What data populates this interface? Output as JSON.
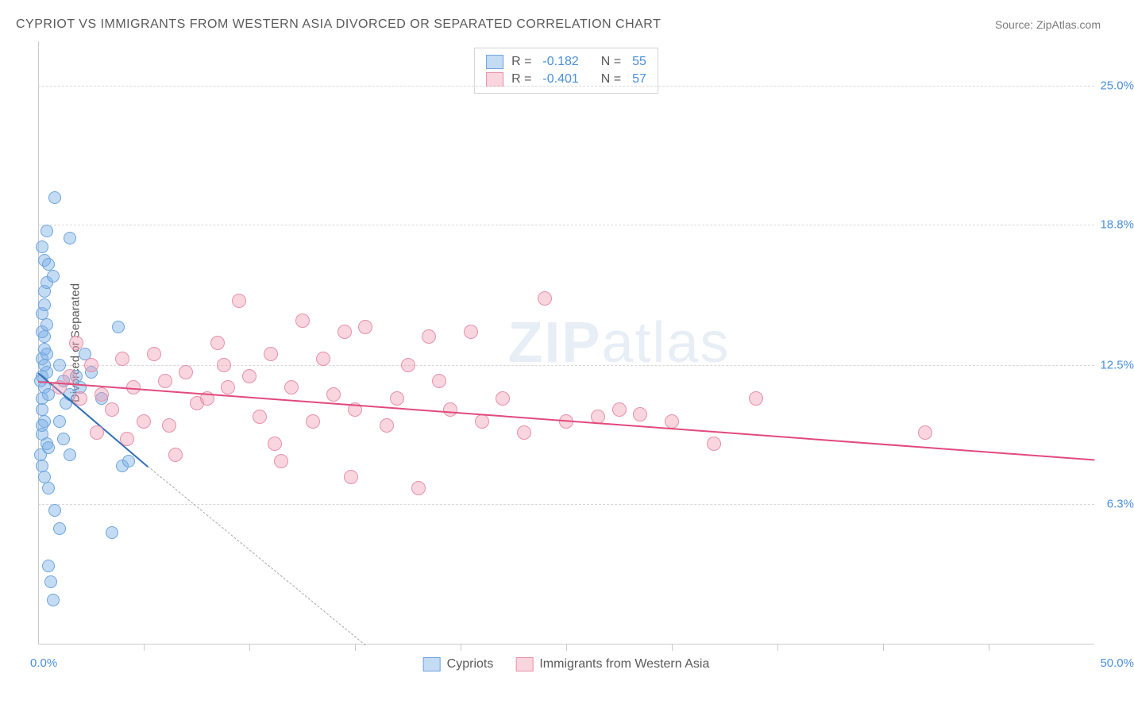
{
  "header": {
    "title": "CYPRIOT VS IMMIGRANTS FROM WESTERN ASIA DIVORCED OR SEPARATED CORRELATION CHART",
    "source": "Source: ZipAtlas.com"
  },
  "watermark": {
    "bold": "ZIP",
    "light": "atlas"
  },
  "chart": {
    "type": "scatter",
    "y_axis_label": "Divorced or Separated",
    "xlim": [
      0,
      50
    ],
    "ylim": [
      0,
      27
    ],
    "x_origin": "0.0%",
    "x_max": "50.0%",
    "y_ticks": [
      {
        "value": 25.0,
        "label": "25.0%"
      },
      {
        "value": 18.8,
        "label": "18.8%"
      },
      {
        "value": 12.5,
        "label": "12.5%"
      },
      {
        "value": 6.3,
        "label": "6.3%"
      }
    ],
    "x_tick_values": [
      5,
      10,
      15,
      20,
      25,
      30,
      35,
      40,
      45
    ],
    "grid_color": "#d8d8d8",
    "tick_label_color": "#4a8fd8",
    "background_color": "#ffffff",
    "series": [
      {
        "name": "Cypriots",
        "fill_color": "rgba(125,175,230,0.45)",
        "stroke_color": "#6ea4db",
        "marker_radius": 8,
        "trend": {
          "x1": 0,
          "y1": 12.2,
          "x2": 5.2,
          "y2": 8.0,
          "color": "#2f6fb5",
          "width": 2
        },
        "trend_dash": {
          "x1": 5.2,
          "y1": 8.0,
          "x2": 15.5,
          "y2": 0
        },
        "R": "-0.182",
        "N": "55",
        "points": [
          [
            0.2,
            12.0
          ],
          [
            0.3,
            11.5
          ],
          [
            0.2,
            11.0
          ],
          [
            0.4,
            12.2
          ],
          [
            0.2,
            12.8
          ],
          [
            0.3,
            13.2
          ],
          [
            0.1,
            11.8
          ],
          [
            0.2,
            10.5
          ],
          [
            0.3,
            10.0
          ],
          [
            0.2,
            9.4
          ],
          [
            0.4,
            9.0
          ],
          [
            0.1,
            8.5
          ],
          [
            0.2,
            8.0
          ],
          [
            0.3,
            7.5
          ],
          [
            0.5,
            8.8
          ],
          [
            0.3,
            13.8
          ],
          [
            0.2,
            14.0
          ],
          [
            0.4,
            14.3
          ],
          [
            0.2,
            14.8
          ],
          [
            0.3,
            15.2
          ],
          [
            0.3,
            15.8
          ],
          [
            0.4,
            16.2
          ],
          [
            0.7,
            16.5
          ],
          [
            0.3,
            17.2
          ],
          [
            0.5,
            17.0
          ],
          [
            0.2,
            17.8
          ],
          [
            0.8,
            20.0
          ],
          [
            0.4,
            18.5
          ],
          [
            1.5,
            18.2
          ],
          [
            1.0,
            12.5
          ],
          [
            1.2,
            11.8
          ],
          [
            1.3,
            10.8
          ],
          [
            1.5,
            11.2
          ],
          [
            1.8,
            12.0
          ],
          [
            2.0,
            11.5
          ],
          [
            2.2,
            13.0
          ],
          [
            2.5,
            12.2
          ],
          [
            3.0,
            11.0
          ],
          [
            4.0,
            8.0
          ],
          [
            4.3,
            8.2
          ],
          [
            3.8,
            14.2
          ],
          [
            1.0,
            10.0
          ],
          [
            1.2,
            9.2
          ],
          [
            1.5,
            8.5
          ],
          [
            0.5,
            7.0
          ],
          [
            0.8,
            6.0
          ],
          [
            1.0,
            5.2
          ],
          [
            3.5,
            5.0
          ],
          [
            0.5,
            3.5
          ],
          [
            0.6,
            2.8
          ],
          [
            0.7,
            2.0
          ],
          [
            0.3,
            12.5
          ],
          [
            0.4,
            13.0
          ],
          [
            0.5,
            11.2
          ],
          [
            0.2,
            9.8
          ]
        ]
      },
      {
        "name": "Immigrants from Western Asia",
        "fill_color": "rgba(240,150,175,0.40)",
        "stroke_color": "#e691ac",
        "marker_radius": 9,
        "trend": {
          "x1": 0,
          "y1": 11.8,
          "x2": 50,
          "y2": 8.3,
          "color": "#e14a7b",
          "width": 2
        },
        "R": "-0.401",
        "N": "57",
        "points": [
          [
            1.0,
            11.5
          ],
          [
            1.5,
            12.0
          ],
          [
            2.0,
            11.0
          ],
          [
            2.5,
            12.5
          ],
          [
            3.0,
            11.2
          ],
          [
            3.5,
            10.5
          ],
          [
            4.0,
            12.8
          ],
          [
            4.5,
            11.5
          ],
          [
            5.0,
            10.0
          ],
          [
            5.5,
            13.0
          ],
          [
            6.0,
            11.8
          ],
          [
            6.5,
            8.5
          ],
          [
            7.0,
            12.2
          ],
          [
            7.5,
            10.8
          ],
          [
            8.0,
            11.0
          ],
          [
            8.5,
            13.5
          ],
          [
            9.0,
            11.5
          ],
          [
            9.5,
            15.4
          ],
          [
            10.0,
            12.0
          ],
          [
            10.5,
            10.2
          ],
          [
            11.0,
            13.0
          ],
          [
            11.2,
            9.0
          ],
          [
            12.0,
            11.5
          ],
          [
            12.5,
            14.5
          ],
          [
            13.0,
            10.0
          ],
          [
            13.5,
            12.8
          ],
          [
            14.0,
            11.2
          ],
          [
            14.5,
            14.0
          ],
          [
            15.0,
            10.5
          ],
          [
            15.5,
            14.2
          ],
          [
            16.5,
            9.8
          ],
          [
            17.5,
            12.5
          ],
          [
            18.0,
            7.0
          ],
          [
            18.5,
            13.8
          ],
          [
            19.5,
            10.5
          ],
          [
            20.5,
            14.0
          ],
          [
            21.0,
            10.0
          ],
          [
            22.0,
            11.0
          ],
          [
            23.0,
            9.5
          ],
          [
            24.0,
            15.5
          ],
          [
            25.0,
            10.0
          ],
          [
            26.5,
            10.2
          ],
          [
            27.5,
            10.5
          ],
          [
            28.5,
            10.3
          ],
          [
            30.0,
            10.0
          ],
          [
            32.0,
            9.0
          ],
          [
            34.0,
            11.0
          ],
          [
            42.0,
            9.5
          ],
          [
            1.8,
            13.5
          ],
          [
            2.8,
            9.5
          ],
          [
            4.2,
            9.2
          ],
          [
            6.2,
            9.8
          ],
          [
            8.8,
            12.5
          ],
          [
            11.5,
            8.2
          ],
          [
            14.8,
            7.5
          ],
          [
            17.0,
            11.0
          ],
          [
            19.0,
            11.8
          ]
        ]
      }
    ],
    "legend_top": {
      "rows": [
        {
          "swatch_fill": "rgba(125,175,230,0.45)",
          "swatch_stroke": "#6ea4db",
          "R_label": "R =",
          "R_value": "-0.182",
          "N_label": "N =",
          "N_value": "55"
        },
        {
          "swatch_fill": "rgba(240,150,175,0.40)",
          "swatch_stroke": "#e691ac",
          "R_label": "R =",
          "R_value": "-0.401",
          "N_label": "N =",
          "N_value": "57"
        }
      ]
    },
    "legend_bottom": [
      {
        "swatch_fill": "rgba(125,175,230,0.45)",
        "swatch_stroke": "#6ea4db",
        "label": "Cypriots"
      },
      {
        "swatch_fill": "rgba(240,150,175,0.40)",
        "swatch_stroke": "#e691ac",
        "label": "Immigrants from Western Asia"
      }
    ]
  }
}
